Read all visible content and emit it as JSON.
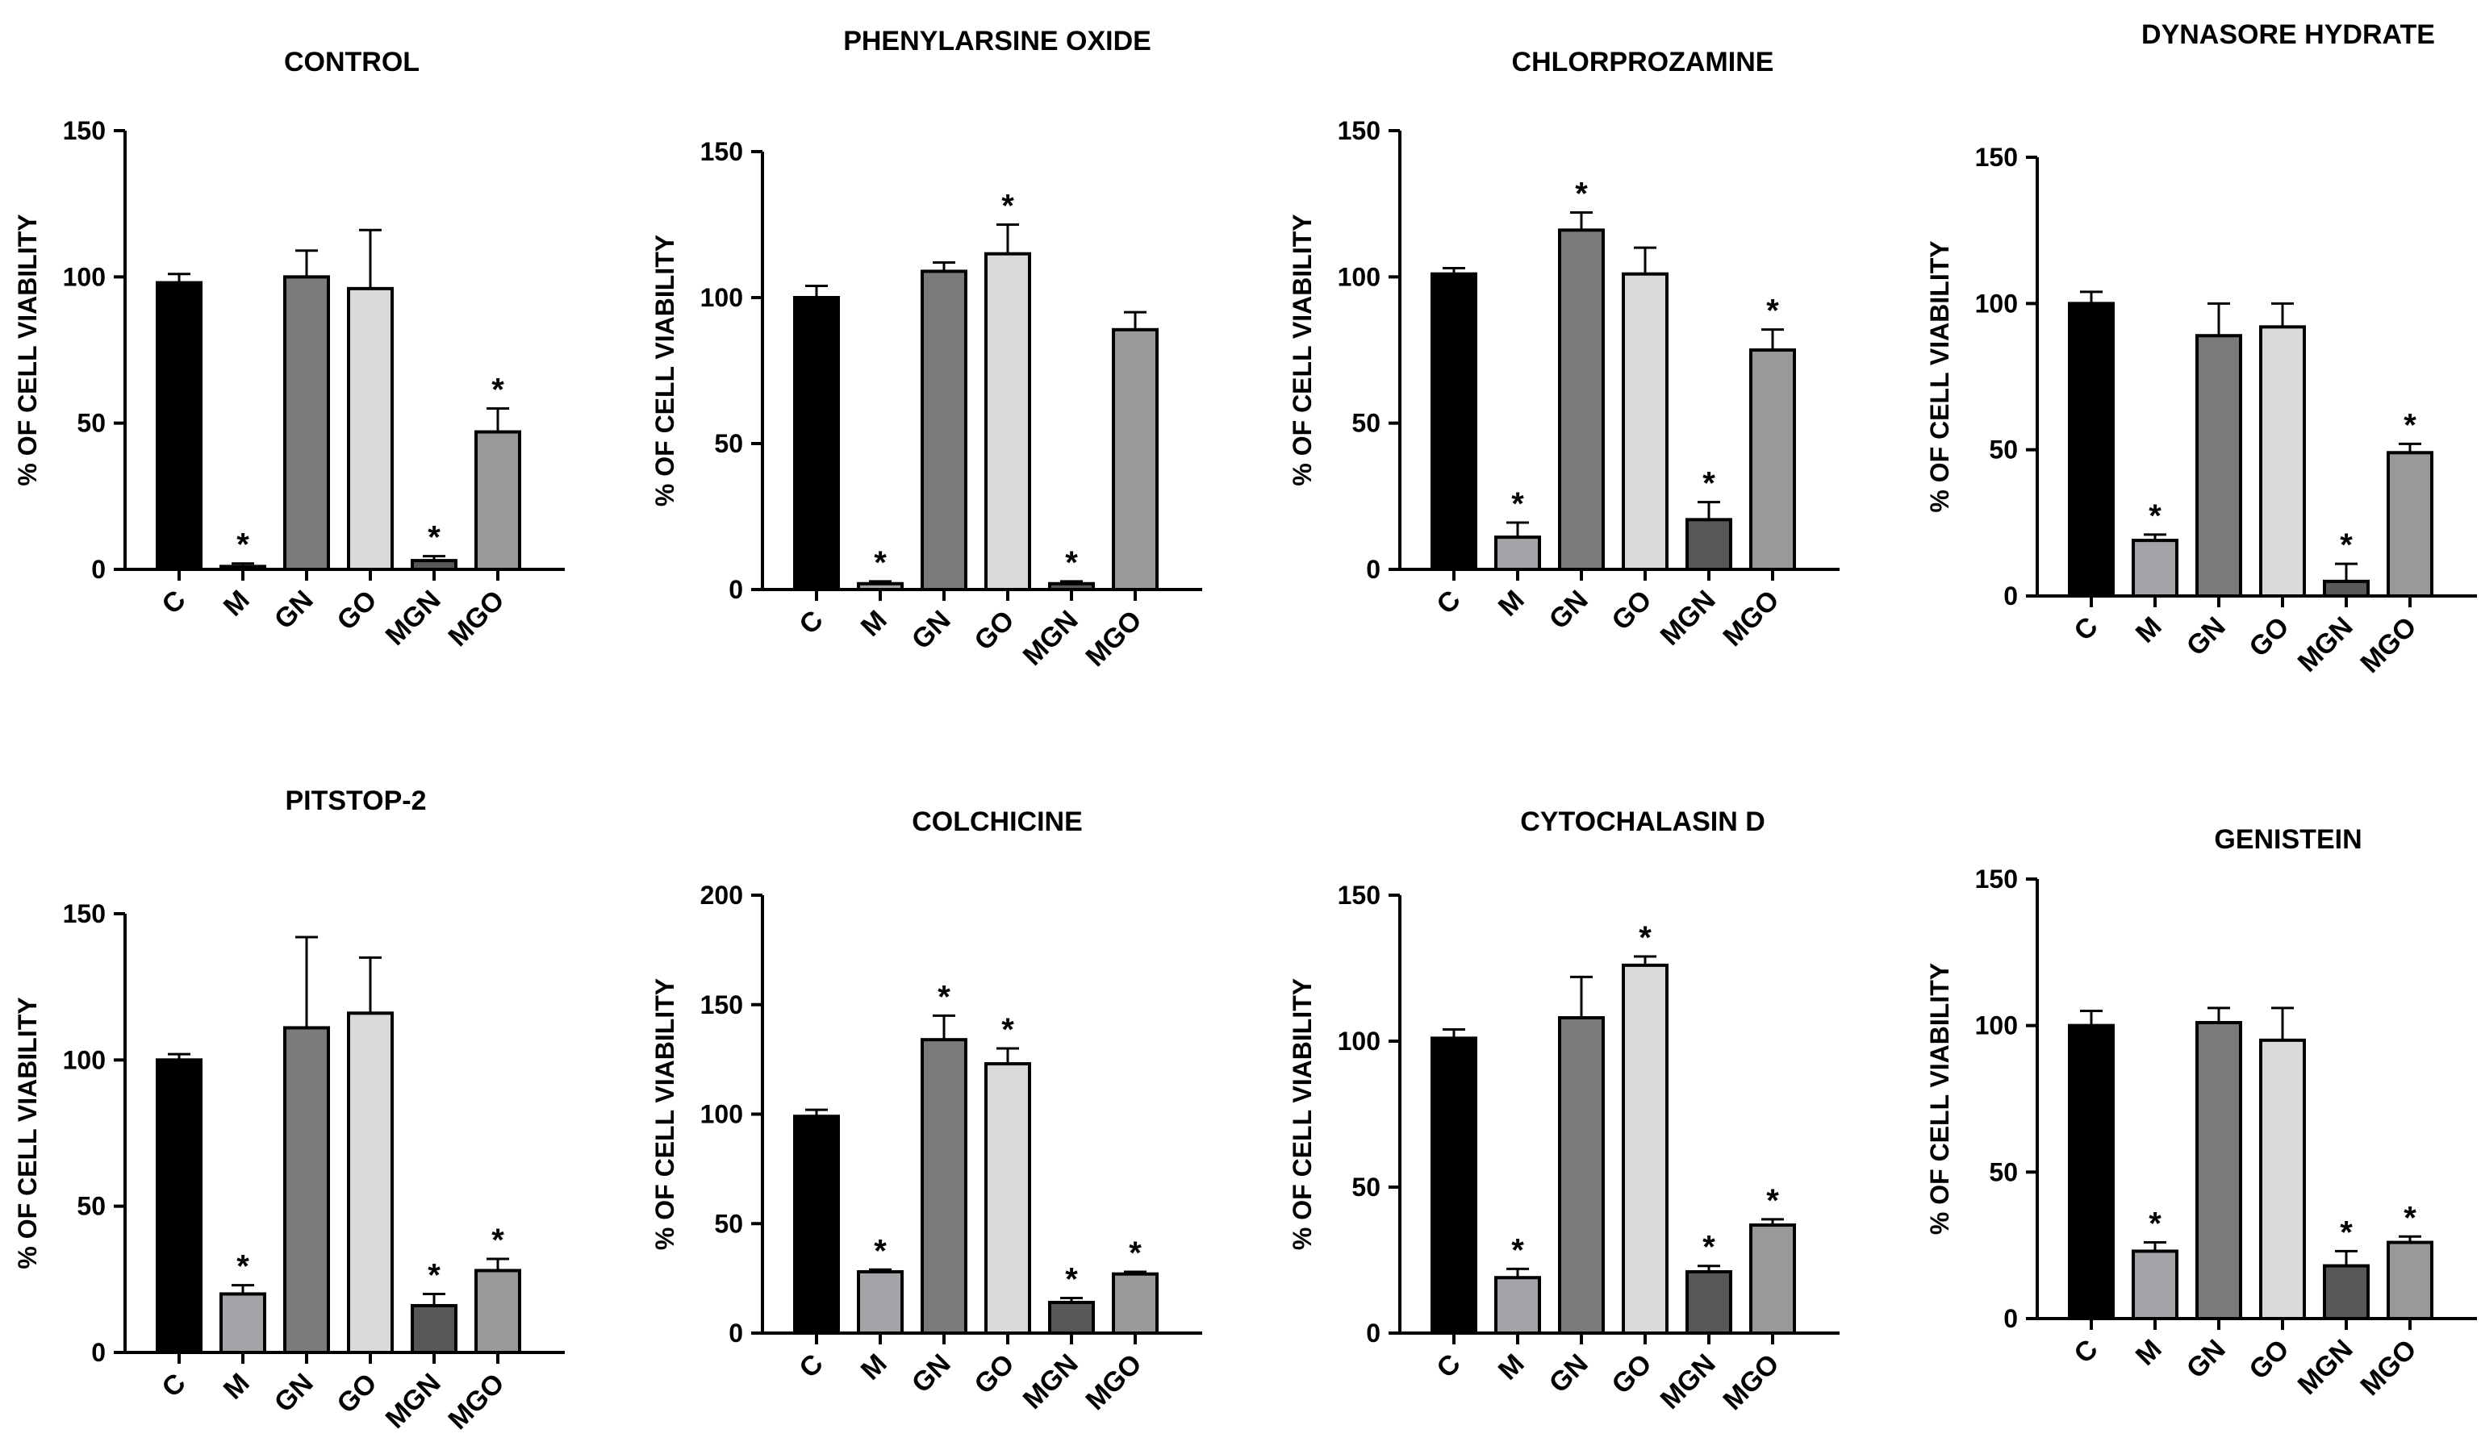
{
  "colors": {
    "C": "#000000",
    "M": "#a3a3a8",
    "GN": "#7b7b7b",
    "GO": "#d9d9d9",
    "MGN": "#585858",
    "MGO": "#999999"
  },
  "chart_data": [
    {
      "type": "bar",
      "title": "CONTROL",
      "ylabel": "% OF CELL VIABILITY",
      "xlabel": "",
      "ylim": [
        0,
        150
      ],
      "yticks": [
        0,
        50,
        100,
        150
      ],
      "categories": [
        "C",
        "M",
        "GN",
        "GO",
        "MGN",
        "MGO"
      ],
      "values": [
        98,
        1,
        100,
        96,
        3,
        47
      ],
      "errors": [
        3,
        1,
        9,
        20,
        1.5,
        8
      ],
      "significant": [
        false,
        true,
        false,
        false,
        true,
        true
      ],
      "sig_marker": "*"
    },
    {
      "type": "bar",
      "title": "PHENYLARSINE OXIDE",
      "ylabel": "% OF CELL VIABILITY",
      "xlabel": "",
      "ylim": [
        0,
        150
      ],
      "yticks": [
        0,
        50,
        100,
        150
      ],
      "categories": [
        "C",
        "M",
        "GN",
        "GO",
        "MGN",
        "MGO"
      ],
      "values": [
        100,
        2,
        109,
        115,
        2,
        89
      ],
      "errors": [
        4,
        0.8,
        3,
        10,
        0.8,
        6
      ],
      "significant": [
        false,
        true,
        false,
        true,
        true,
        false
      ],
      "sig_marker": "*"
    },
    {
      "type": "bar",
      "title": "CHLORPROZAMINE",
      "ylabel": "% OF CELL VIABILITY",
      "xlabel": "",
      "ylim": [
        0,
        150
      ],
      "yticks": [
        0,
        50,
        100,
        150
      ],
      "categories": [
        "C",
        "M",
        "GN",
        "GO",
        "MGN",
        "MGO"
      ],
      "values": [
        101,
        11,
        116,
        101,
        17,
        75
      ],
      "errors": [
        2,
        5,
        6,
        9,
        6,
        7
      ],
      "significant": [
        false,
        true,
        true,
        false,
        true,
        true
      ],
      "sig_marker": "*"
    },
    {
      "type": "bar",
      "title": "DYNASORE HYDRATE",
      "ylabel": "% OF CELL VIABILITY",
      "xlabel": "",
      "ylim": [
        0,
        150
      ],
      "yticks": [
        0,
        50,
        100,
        150
      ],
      "categories": [
        "C",
        "M",
        "GN",
        "GO",
        "MGN",
        "MGO"
      ],
      "values": [
        100,
        19,
        89,
        92,
        5,
        49
      ],
      "errors": [
        4,
        2,
        11,
        8,
        6,
        3
      ],
      "significant": [
        false,
        true,
        false,
        false,
        true,
        true
      ],
      "sig_marker": "*"
    },
    {
      "type": "bar",
      "title": "PITSTOP-2",
      "ylabel": "% OF CELL VIABILITY",
      "xlabel": "",
      "ylim": [
        0,
        150
      ],
      "yticks": [
        0,
        50,
        100,
        150
      ],
      "categories": [
        "C",
        "M",
        "GN",
        "GO",
        "MGN",
        "MGO"
      ],
      "values": [
        100,
        20,
        111,
        116,
        16,
        28
      ],
      "errors": [
        2,
        3,
        31,
        19,
        4,
        4
      ],
      "significant": [
        false,
        true,
        false,
        false,
        true,
        true
      ],
      "sig_marker": "*"
    },
    {
      "type": "bar",
      "title": "COLCHICINE",
      "ylabel": "% OF CELL VIABILITY",
      "xlabel": "",
      "ylim": [
        0,
        200
      ],
      "yticks": [
        0,
        50,
        100,
        150,
        200
      ],
      "categories": [
        "C",
        "M",
        "GN",
        "GO",
        "MGN",
        "MGO"
      ],
      "values": [
        99,
        28,
        134,
        123,
        14,
        27
      ],
      "errors": [
        3,
        1,
        11,
        7,
        2,
        1
      ],
      "significant": [
        false,
        true,
        true,
        true,
        true,
        true
      ],
      "sig_marker": "*"
    },
    {
      "type": "bar",
      "title": "CYTOCHALASIN D",
      "ylabel": "% OF CELL VIABILITY",
      "xlabel": "",
      "ylim": [
        0,
        150
      ],
      "yticks": [
        0,
        50,
        100,
        150
      ],
      "categories": [
        "C",
        "M",
        "GN",
        "GO",
        "MGN",
        "MGO"
      ],
      "values": [
        101,
        19,
        108,
        126,
        21,
        37
      ],
      "errors": [
        3,
        3,
        14,
        3,
        2,
        2
      ],
      "significant": [
        false,
        true,
        false,
        true,
        true,
        true
      ],
      "sig_marker": "*"
    },
    {
      "type": "bar",
      "title": "GENISTEIN",
      "ylabel": "% OF CELL VIABILITY",
      "xlabel": "",
      "ylim": [
        0,
        150
      ],
      "yticks": [
        0,
        50,
        100,
        150
      ],
      "categories": [
        "C",
        "M",
        "GN",
        "GO",
        "MGN",
        "MGO"
      ],
      "values": [
        100,
        23,
        101,
        95,
        18,
        26
      ],
      "errors": [
        5,
        3,
        5,
        11,
        5,
        2
      ],
      "significant": [
        false,
        true,
        false,
        false,
        true,
        true
      ],
      "sig_marker": "*"
    }
  ]
}
